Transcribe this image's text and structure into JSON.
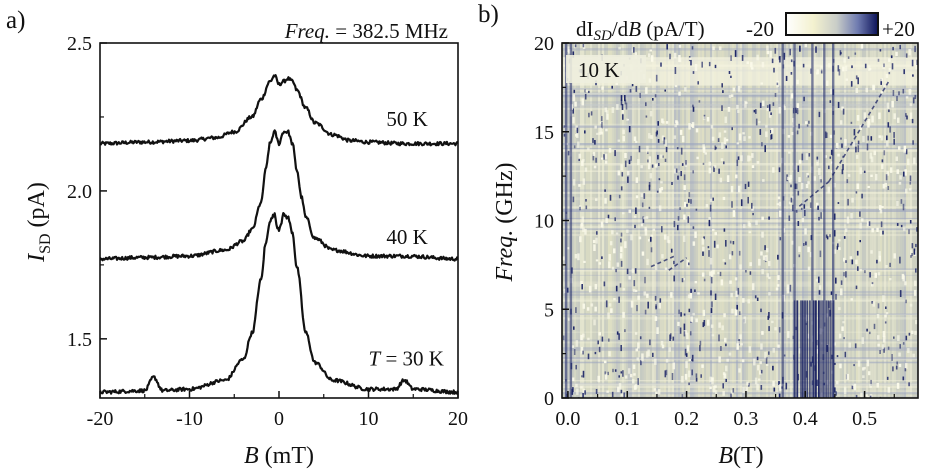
{
  "chart_data": [
    {
      "panel_label": "a)",
      "type": "line",
      "title_parts": [
        "Freq.",
        " = 382.5 MHz"
      ],
      "xlabel_parts": [
        "B",
        " (mT)"
      ],
      "ylabel_parts": [
        "I",
        "SD",
        " (pA)"
      ],
      "xlim": [
        -20,
        20
      ],
      "ylim": [
        1.3,
        2.5
      ],
      "x_ticks": [
        -20,
        -10,
        0,
        10,
        20
      ],
      "x_tick_labels": [
        "-20",
        "-10",
        "0",
        "10",
        "20"
      ],
      "y_ticks": [
        1.5,
        2.0,
        2.5
      ],
      "y_tick_labels": [
        "1.5",
        "2.0",
        "2.5"
      ],
      "grid": false,
      "series": [
        {
          "label_parts": [
            "",
            "50 K"
          ],
          "label_pos": [
            12,
            2.22
          ],
          "x": [
            -20,
            -15,
            -10,
            -7,
            -5,
            -3,
            -2,
            -1,
            -0.5,
            0,
            0.5,
            1,
            1.5,
            2,
            3,
            4,
            6,
            8,
            10,
            14,
            20
          ],
          "y": [
            2.16,
            2.165,
            2.17,
            2.18,
            2.2,
            2.25,
            2.31,
            2.37,
            2.39,
            2.36,
            2.37,
            2.38,
            2.37,
            2.34,
            2.28,
            2.23,
            2.19,
            2.17,
            2.165,
            2.16,
            2.16
          ]
        },
        {
          "label_parts": [
            "",
            "40 K"
          ],
          "label_pos": [
            12,
            1.82
          ],
          "x": [
            -20,
            -15,
            -10,
            -6,
            -4,
            -3,
            -2,
            -1.5,
            -1,
            -0.5,
            0,
            0.5,
            1,
            1.5,
            2,
            2.5,
            3,
            4,
            6,
            10,
            14,
            20
          ],
          "y": [
            1.77,
            1.775,
            1.78,
            1.8,
            1.83,
            1.87,
            1.96,
            2.07,
            2.16,
            2.2,
            2.16,
            2.2,
            2.2,
            2.16,
            2.07,
            1.98,
            1.91,
            1.84,
            1.8,
            1.78,
            1.78,
            1.77
          ]
        },
        {
          "label_parts": [
            "T",
            " = 30 K"
          ],
          "label_pos": [
            10,
            1.41
          ],
          "x": [
            -20,
            -15,
            -14,
            -13,
            -10,
            -6,
            -4,
            -3,
            -2,
            -1.5,
            -1,
            -0.5,
            -0.2,
            0,
            0.2,
            0.5,
            1,
            1.5,
            2,
            3,
            4,
            6,
            10,
            13,
            14,
            15,
            20
          ],
          "y": [
            1.32,
            1.325,
            1.37,
            1.325,
            1.33,
            1.36,
            1.43,
            1.52,
            1.7,
            1.82,
            1.9,
            1.92,
            1.88,
            1.87,
            1.89,
            1.92,
            1.91,
            1.86,
            1.74,
            1.52,
            1.42,
            1.36,
            1.33,
            1.33,
            1.36,
            1.33,
            1.32
          ]
        }
      ]
    },
    {
      "panel_label": "b)",
      "type": "heatmap",
      "colorbar_label_parts": [
        "dI",
        "SD",
        "/d",
        "B",
        " (pA/T)"
      ],
      "colorbar_min": "-20",
      "colorbar_max": "+20",
      "colormap": [
        "#ffffff",
        "#f1f0d8",
        "#dedfc6",
        "#c6ccca",
        "#9ca6c4",
        "#3d4690",
        "#0d1560"
      ],
      "xlabel_parts": [
        "B",
        "(T)"
      ],
      "ylabel_parts": [
        "Freq.",
        " (GHz)"
      ],
      "xlim": [
        -0.01,
        0.59
      ],
      "ylim": [
        0,
        20
      ],
      "x_ticks": [
        0,
        0.1,
        0.2,
        0.3,
        0.4,
        0.5
      ],
      "x_tick_labels": [
        "0.0",
        "0.1",
        "0.2",
        "0.3",
        "0.4",
        "0.5"
      ],
      "y_ticks": [
        0,
        5,
        10,
        15,
        20
      ],
      "y_tick_labels": [
        "0",
        "5",
        "10",
        "15",
        "20"
      ],
      "inset_text": "10 K",
      "features": {
        "bright_band_ghz": [
          17.6,
          19.2
        ],
        "dark_columns_T": [
          -0.005,
          0.003,
          0.36,
          0.38,
          0.41,
          0.43,
          0.445
        ],
        "dark_block_T": [
          0.38,
          0.45
        ],
        "dark_block_ghz": [
          0,
          5.5
        ],
        "diagonal_lines": [
          [
            [
              0.14,
              7.4
            ],
            [
              0.18,
              8.0
            ]
          ],
          [
            [
              0.39,
              10.8
            ],
            [
              0.44,
              12.2
            ]
          ],
          [
            [
              0.44,
              12.2
            ],
            [
              0.54,
              17.8
            ]
          ],
          [
            [
              0.17,
              7.2
            ],
            [
              0.2,
              7.9
            ]
          ]
        ]
      }
    }
  ]
}
